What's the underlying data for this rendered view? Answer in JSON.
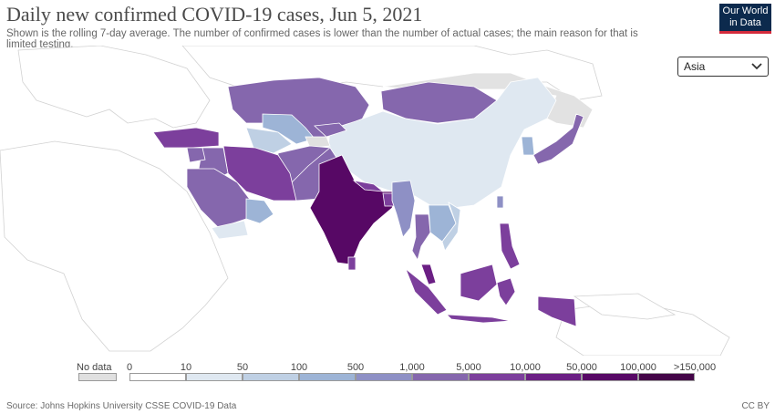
{
  "title": "Daily new confirmed COVID-19 cases, Jun 5, 2021",
  "subtitle": "Shown is the rolling 7-day average. The number of confirmed cases is lower than the number of actual cases; the main reason for that is limited testing.",
  "logo": {
    "line1": "Our World",
    "line2": "in Data"
  },
  "region_select": {
    "value": "Asia",
    "icon": "chevron-down-icon"
  },
  "legend": {
    "no_data_label": "No data",
    "ticks": [
      "0",
      "10",
      "50",
      "100",
      "500",
      "1,000",
      "5,000",
      "10,000",
      "50,000",
      "100,000",
      ">150,000"
    ],
    "colors": [
      "#ffffff",
      "#dfe8f1",
      "#bfd0e4",
      "#9db4d6",
      "#8e90c5",
      "#8567ad",
      "#7c3f9c",
      "#6b1f84",
      "#570865",
      "#440548"
    ],
    "no_data_color": "#e0e0e0"
  },
  "source": "Source: Johns Hopkins University CSSE COVID-19 Data",
  "license": "CC BY"
}
